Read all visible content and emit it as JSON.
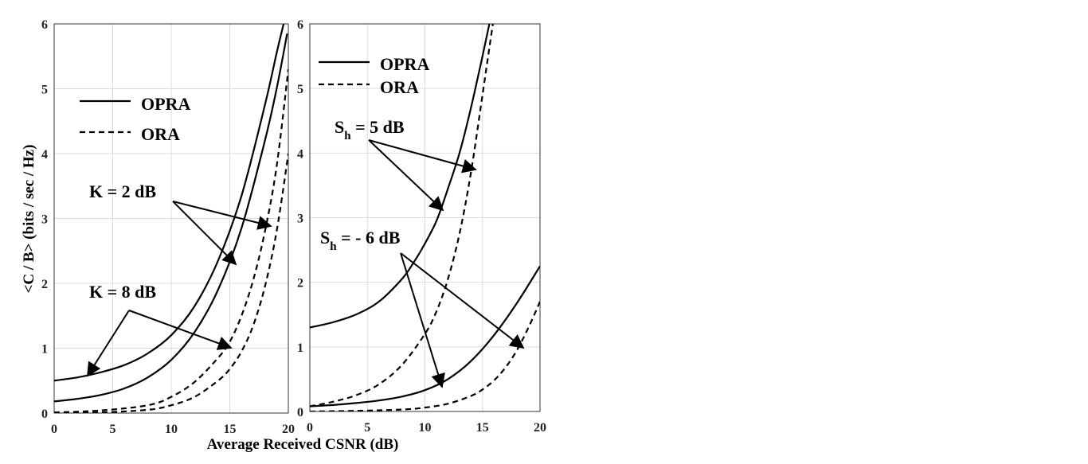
{
  "figure": {
    "xlabel": "Average Received CSNR (dB)",
    "ylabel": "<C / B> (bits / sec / Hz)"
  },
  "chart_data": [
    {
      "type": "line",
      "panel": "left",
      "xlim": [
        0,
        20
      ],
      "ylim": [
        0,
        6
      ],
      "xticks": [
        "0",
        "5",
        "10",
        "15",
        "20"
      ],
      "yticks": [
        "0",
        "1",
        "2",
        "3",
        "4",
        "5",
        "6"
      ],
      "grid": true,
      "legend": {
        "placement": "upper-left",
        "entries": [
          {
            "label": "OPRA",
            "style": "solid"
          },
          {
            "label": "ORA",
            "style": "dashed"
          }
        ]
      },
      "annotations": [
        {
          "text": "K = 2 dB"
        },
        {
          "text": "K = 8 dB"
        }
      ],
      "series": [
        {
          "style": "solid",
          "x": [
            0,
            2,
            4,
            6,
            8,
            10,
            12,
            14,
            16,
            18,
            19,
            19.6
          ],
          "y": [
            0.5,
            0.55,
            0.63,
            0.74,
            0.92,
            1.2,
            1.65,
            2.35,
            3.35,
            4.75,
            5.55,
            6.0
          ]
        },
        {
          "style": "solid",
          "x": [
            0,
            2,
            4,
            6,
            8,
            10,
            12,
            14,
            16,
            18,
            19,
            19.9
          ],
          "y": [
            0.18,
            0.22,
            0.28,
            0.38,
            0.55,
            0.82,
            1.25,
            1.9,
            2.85,
            4.2,
            5.0,
            5.85
          ]
        },
        {
          "style": "dashed",
          "x": [
            0,
            4,
            8,
            10,
            12,
            14,
            15,
            16,
            17,
            18,
            19,
            20
          ],
          "y": [
            0.01,
            0.04,
            0.12,
            0.25,
            0.48,
            0.85,
            1.1,
            1.5,
            2.05,
            2.8,
            3.8,
            5.3
          ]
        },
        {
          "style": "dashed",
          "x": [
            0,
            4,
            8,
            10,
            12,
            14,
            15,
            16,
            17,
            18,
            19,
            20
          ],
          "y": [
            0.0,
            0.01,
            0.05,
            0.12,
            0.25,
            0.5,
            0.68,
            0.95,
            1.35,
            1.95,
            2.8,
            4.0
          ]
        }
      ]
    },
    {
      "type": "line",
      "panel": "right",
      "xlim": [
        0,
        20
      ],
      "ylim": [
        0,
        6
      ],
      "xticks": [
        "0",
        "5",
        "10",
        "15",
        "20"
      ],
      "yticks": [
        "0",
        "1",
        "2",
        "3",
        "4",
        "5",
        "6"
      ],
      "grid": true,
      "legend": {
        "placement": "upper-left",
        "entries": [
          {
            "label": "OPRA",
            "style": "solid"
          },
          {
            "label": "ORA",
            "style": "dashed"
          }
        ]
      },
      "annotations": [
        {
          "text": "S",
          "sub": "h",
          "tail": " = 5 dB"
        },
        {
          "text": "S",
          "sub": "h",
          "tail": " = - 6 dB"
        }
      ],
      "series": [
        {
          "style": "solid",
          "x": [
            0,
            2,
            4,
            6,
            8,
            9,
            10,
            11,
            12,
            13,
            14,
            15,
            15.6
          ],
          "y": [
            1.3,
            1.38,
            1.5,
            1.7,
            2.05,
            2.3,
            2.6,
            2.95,
            3.45,
            4.0,
            4.7,
            5.5,
            6.0
          ]
        },
        {
          "style": "dashed",
          "x": [
            0,
            2,
            4,
            6,
            8,
            10,
            11,
            12,
            13,
            14,
            15,
            15.9
          ],
          "y": [
            0.08,
            0.15,
            0.25,
            0.42,
            0.72,
            1.2,
            1.55,
            2.05,
            2.75,
            3.7,
            4.9,
            6.0
          ]
        },
        {
          "style": "solid",
          "x": [
            0,
            2,
            4,
            6,
            8,
            10,
            12,
            14,
            16,
            18,
            20
          ],
          "y": [
            0.08,
            0.1,
            0.13,
            0.17,
            0.23,
            0.33,
            0.5,
            0.78,
            1.18,
            1.68,
            2.25
          ]
        },
        {
          "style": "dashed",
          "x": [
            0,
            4,
            8,
            10,
            12,
            14,
            15,
            16,
            17,
            18,
            19,
            20
          ],
          "y": [
            0.0,
            0.01,
            0.03,
            0.06,
            0.12,
            0.24,
            0.34,
            0.48,
            0.68,
            0.95,
            1.3,
            1.7
          ]
        }
      ]
    }
  ]
}
